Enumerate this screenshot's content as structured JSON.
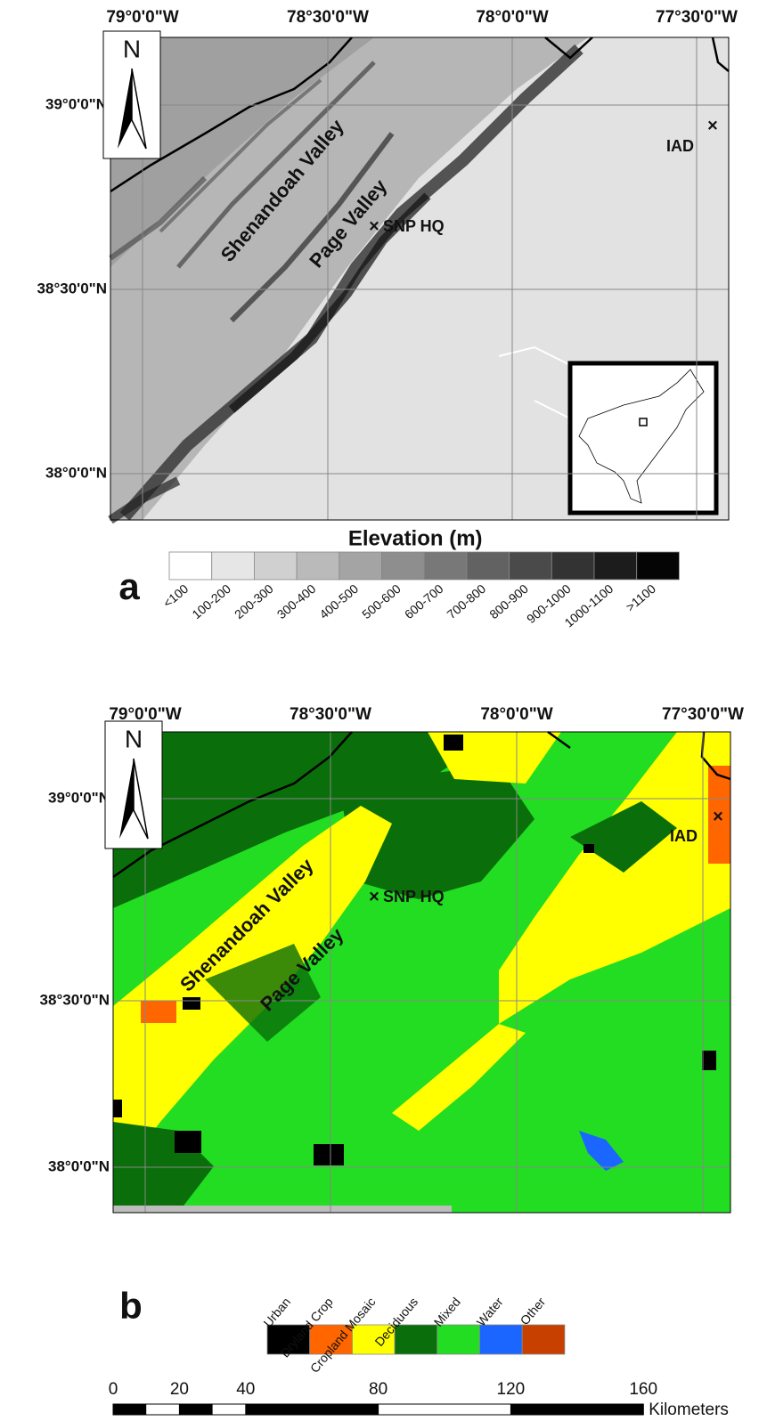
{
  "panels": [
    {
      "label": "a",
      "lon_labels": [
        "79°0'0\"W",
        "78°30'0\"W",
        "78°0'0\"W",
        "77°30'0\"W"
      ],
      "lat_labels": [
        "39°0'0\"N",
        "38°30'0\"N",
        "38°0'0\"N"
      ],
      "north": "N",
      "annotations": {
        "shenandoah": "Shenandoah Valley",
        "page": "Page Valley",
        "hq": "SNP HQ",
        "iad": "IAD"
      },
      "legend_title": "Elevation (m)",
      "legend": [
        {
          "label": "<100",
          "color": "#ffffff"
        },
        {
          "label": "100-200",
          "color": "#e6e6e6"
        },
        {
          "label": "200-300",
          "color": "#d0d0d0"
        },
        {
          "label": "300-400",
          "color": "#bababa"
        },
        {
          "label": "400-500",
          "color": "#a4a4a4"
        },
        {
          "label": "500-600",
          "color": "#8e8e8e"
        },
        {
          "label": "600-700",
          "color": "#787878"
        },
        {
          "label": "700-800",
          "color": "#626262"
        },
        {
          "label": "800-900",
          "color": "#4a4a4a"
        },
        {
          "label": "900-1000",
          "color": "#333333"
        },
        {
          "label": "1000-1100",
          "color": "#1c1c1c"
        },
        {
          "label": ">1100",
          "color": "#050505"
        }
      ]
    },
    {
      "label": "b",
      "lon_labels": [
        "79°0'0\"W",
        "78°30'0\"W",
        "78°0'0\"W",
        "77°30'0\"W"
      ],
      "lat_labels": [
        "39°0'0\"N",
        "38°30'0\"N",
        "38°0'0\"N"
      ],
      "north": "N",
      "annotations": {
        "shenandoah": "Shenandoah Valley",
        "page": "Page Valley",
        "hq": "SNP HQ",
        "iad": "IAD"
      },
      "legend": [
        {
          "label": "Urban",
          "color": "#000000"
        },
        {
          "label": "Dryland Crop",
          "color": "#ff6600"
        },
        {
          "label": "Cropland Mosaic",
          "color": "#ffff00"
        },
        {
          "label": "Deciduous",
          "color": "#0a6e0a"
        },
        {
          "label": "Mixed",
          "color": "#22dd22"
        },
        {
          "label": "Water",
          "color": "#1a66ff"
        },
        {
          "label": "Other",
          "color": "#c84000"
        }
      ]
    }
  ],
  "scale_bar": {
    "ticks": [
      0,
      20,
      40,
      80,
      120,
      160
    ],
    "unit": "Kilometers"
  }
}
